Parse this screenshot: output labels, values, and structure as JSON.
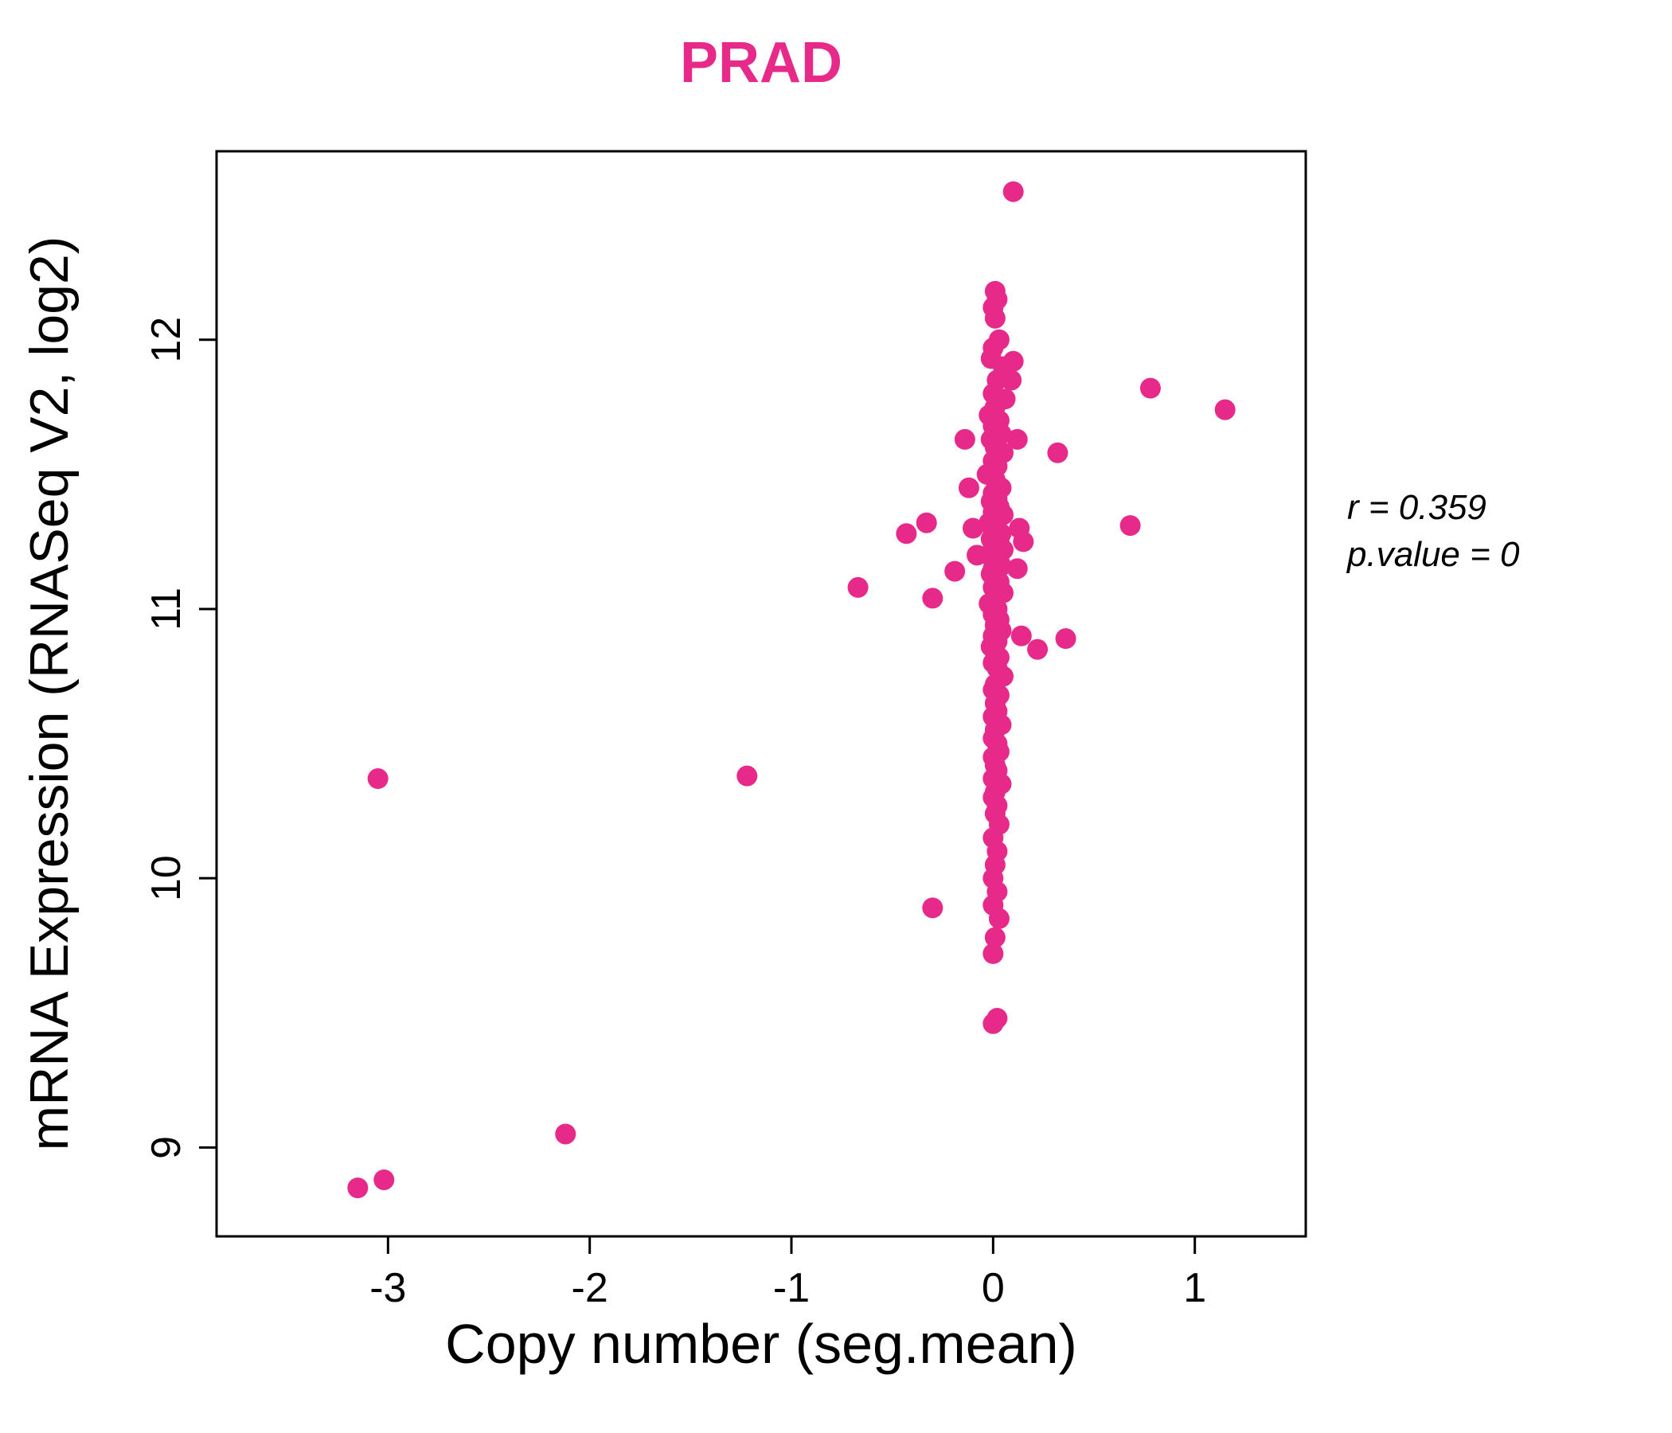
{
  "title": "PRAD",
  "annotation": {
    "line1": "r = 0.359",
    "line2": "p.value = 0"
  },
  "chart_data": {
    "type": "scatter",
    "title": "PRAD",
    "xlabel": "Copy number (seg.mean)",
    "ylabel": "mRNA Expression (RNASeq V2, log2)",
    "xlim": [
      -3.85,
      1.55
    ],
    "ylim": [
      8.67,
      12.7
    ],
    "x_ticks": [
      -3,
      -2,
      -1,
      0,
      1
    ],
    "y_ticks": [
      9,
      10,
      11,
      12
    ],
    "grid": false,
    "legend": "none",
    "point_color": "#E7298A",
    "title_color": "#E7298A",
    "annotations": [
      "r = 0.359",
      "p.value = 0"
    ],
    "points": [
      [
        -3.15,
        8.85
      ],
      [
        -3.02,
        8.88
      ],
      [
        -3.05,
        10.37
      ],
      [
        -2.12,
        9.05
      ],
      [
        -1.22,
        10.38
      ],
      [
        -0.67,
        11.08
      ],
      [
        -0.43,
        11.28
      ],
      [
        -0.33,
        11.32
      ],
      [
        -0.3,
        11.04
      ],
      [
        -0.3,
        9.89
      ],
      [
        -0.19,
        11.14
      ],
      [
        -0.14,
        11.63
      ],
      [
        -0.12,
        11.45
      ],
      [
        -0.1,
        11.3
      ],
      [
        -0.08,
        11.2
      ],
      [
        0.1,
        12.55
      ],
      [
        0.22,
        10.85
      ],
      [
        0.32,
        11.58
      ],
      [
        0.36,
        10.89
      ],
      [
        0.68,
        11.31
      ],
      [
        0.78,
        11.82
      ],
      [
        1.15,
        11.74
      ],
      [
        0.13,
        11.3
      ],
      [
        0.15,
        11.25
      ],
      [
        0.12,
        11.15
      ],
      [
        0.14,
        10.9
      ],
      [
        0.12,
        11.63
      ],
      [
        0.1,
        11.92
      ],
      [
        0.09,
        11.85
      ],
      [
        0.01,
        12.18
      ],
      [
        0.02,
        12.15
      ],
      [
        0.0,
        12.12
      ],
      [
        0.01,
        12.08
      ],
      [
        0.03,
        12.0
      ],
      [
        0.0,
        11.97
      ],
      [
        -0.01,
        11.93
      ],
      [
        0.05,
        11.9
      ],
      [
        0.02,
        11.85
      ],
      [
        0.0,
        11.8
      ],
      [
        0.06,
        11.78
      ],
      [
        0.01,
        11.75
      ],
      [
        -0.02,
        11.72
      ],
      [
        0.03,
        11.7
      ],
      [
        0.0,
        11.68
      ],
      [
        0.04,
        11.65
      ],
      [
        -0.01,
        11.63
      ],
      [
        0.01,
        11.6
      ],
      [
        0.05,
        11.58
      ],
      [
        0.0,
        11.55
      ],
      [
        0.02,
        11.53
      ],
      [
        -0.03,
        11.5
      ],
      [
        0.01,
        11.48
      ],
      [
        0.04,
        11.45
      ],
      [
        0.0,
        11.43
      ],
      [
        0.02,
        11.41
      ],
      [
        -0.01,
        11.4
      ],
      [
        0.03,
        11.38
      ],
      [
        0.0,
        11.36
      ],
      [
        0.05,
        11.35
      ],
      [
        0.01,
        11.33
      ],
      [
        -0.02,
        11.32
      ],
      [
        0.02,
        11.3
      ],
      [
        0.0,
        11.29
      ],
      [
        0.04,
        11.28
      ],
      [
        0.01,
        11.27
      ],
      [
        -0.01,
        11.26
      ],
      [
        0.03,
        11.25
      ],
      [
        0.0,
        11.24
      ],
      [
        0.02,
        11.23
      ],
      [
        0.05,
        11.22
      ],
      [
        0.01,
        11.21
      ],
      [
        -0.02,
        11.2
      ],
      [
        0.0,
        11.19
      ],
      [
        0.03,
        11.18
      ],
      [
        0.01,
        11.17
      ],
      [
        0.04,
        11.16
      ],
      [
        0.0,
        11.15
      ],
      [
        0.02,
        11.14
      ],
      [
        -0.01,
        11.13
      ],
      [
        0.01,
        11.12
      ],
      [
        0.03,
        11.1
      ],
      [
        0.0,
        11.08
      ],
      [
        0.05,
        11.06
      ],
      [
        0.01,
        11.04
      ],
      [
        -0.02,
        11.02
      ],
      [
        0.02,
        11.0
      ],
      [
        0.0,
        10.98
      ],
      [
        0.03,
        10.96
      ],
      [
        0.01,
        10.94
      ],
      [
        0.04,
        10.92
      ],
      [
        0.0,
        10.9
      ],
      [
        0.02,
        10.88
      ],
      [
        -0.01,
        10.86
      ],
      [
        0.01,
        10.84
      ],
      [
        0.03,
        10.82
      ],
      [
        0.0,
        10.8
      ],
      [
        0.02,
        10.78
      ],
      [
        0.05,
        10.75
      ],
      [
        0.01,
        10.72
      ],
      [
        0.0,
        10.7
      ],
      [
        0.03,
        10.68
      ],
      [
        0.01,
        10.65
      ],
      [
        0.02,
        10.62
      ],
      [
        0.0,
        10.6
      ],
      [
        0.04,
        10.57
      ],
      [
        0.01,
        10.55
      ],
      [
        0.0,
        10.52
      ],
      [
        0.02,
        10.5
      ],
      [
        0.03,
        10.47
      ],
      [
        0.0,
        10.45
      ],
      [
        0.01,
        10.42
      ],
      [
        0.02,
        10.4
      ],
      [
        0.0,
        10.37
      ],
      [
        0.04,
        10.35
      ],
      [
        0.01,
        10.32
      ],
      [
        0.0,
        10.3
      ],
      [
        0.02,
        10.27
      ],
      [
        0.01,
        10.24
      ],
      [
        0.03,
        10.2
      ],
      [
        0.0,
        10.15
      ],
      [
        0.02,
        10.1
      ],
      [
        0.01,
        10.05
      ],
      [
        0.0,
        10.0
      ],
      [
        0.02,
        9.95
      ],
      [
        0.0,
        9.9
      ],
      [
        0.03,
        9.85
      ],
      [
        0.01,
        9.78
      ],
      [
        0.0,
        9.72
      ],
      [
        0.02,
        9.48
      ],
      [
        0.0,
        9.46
      ]
    ]
  }
}
